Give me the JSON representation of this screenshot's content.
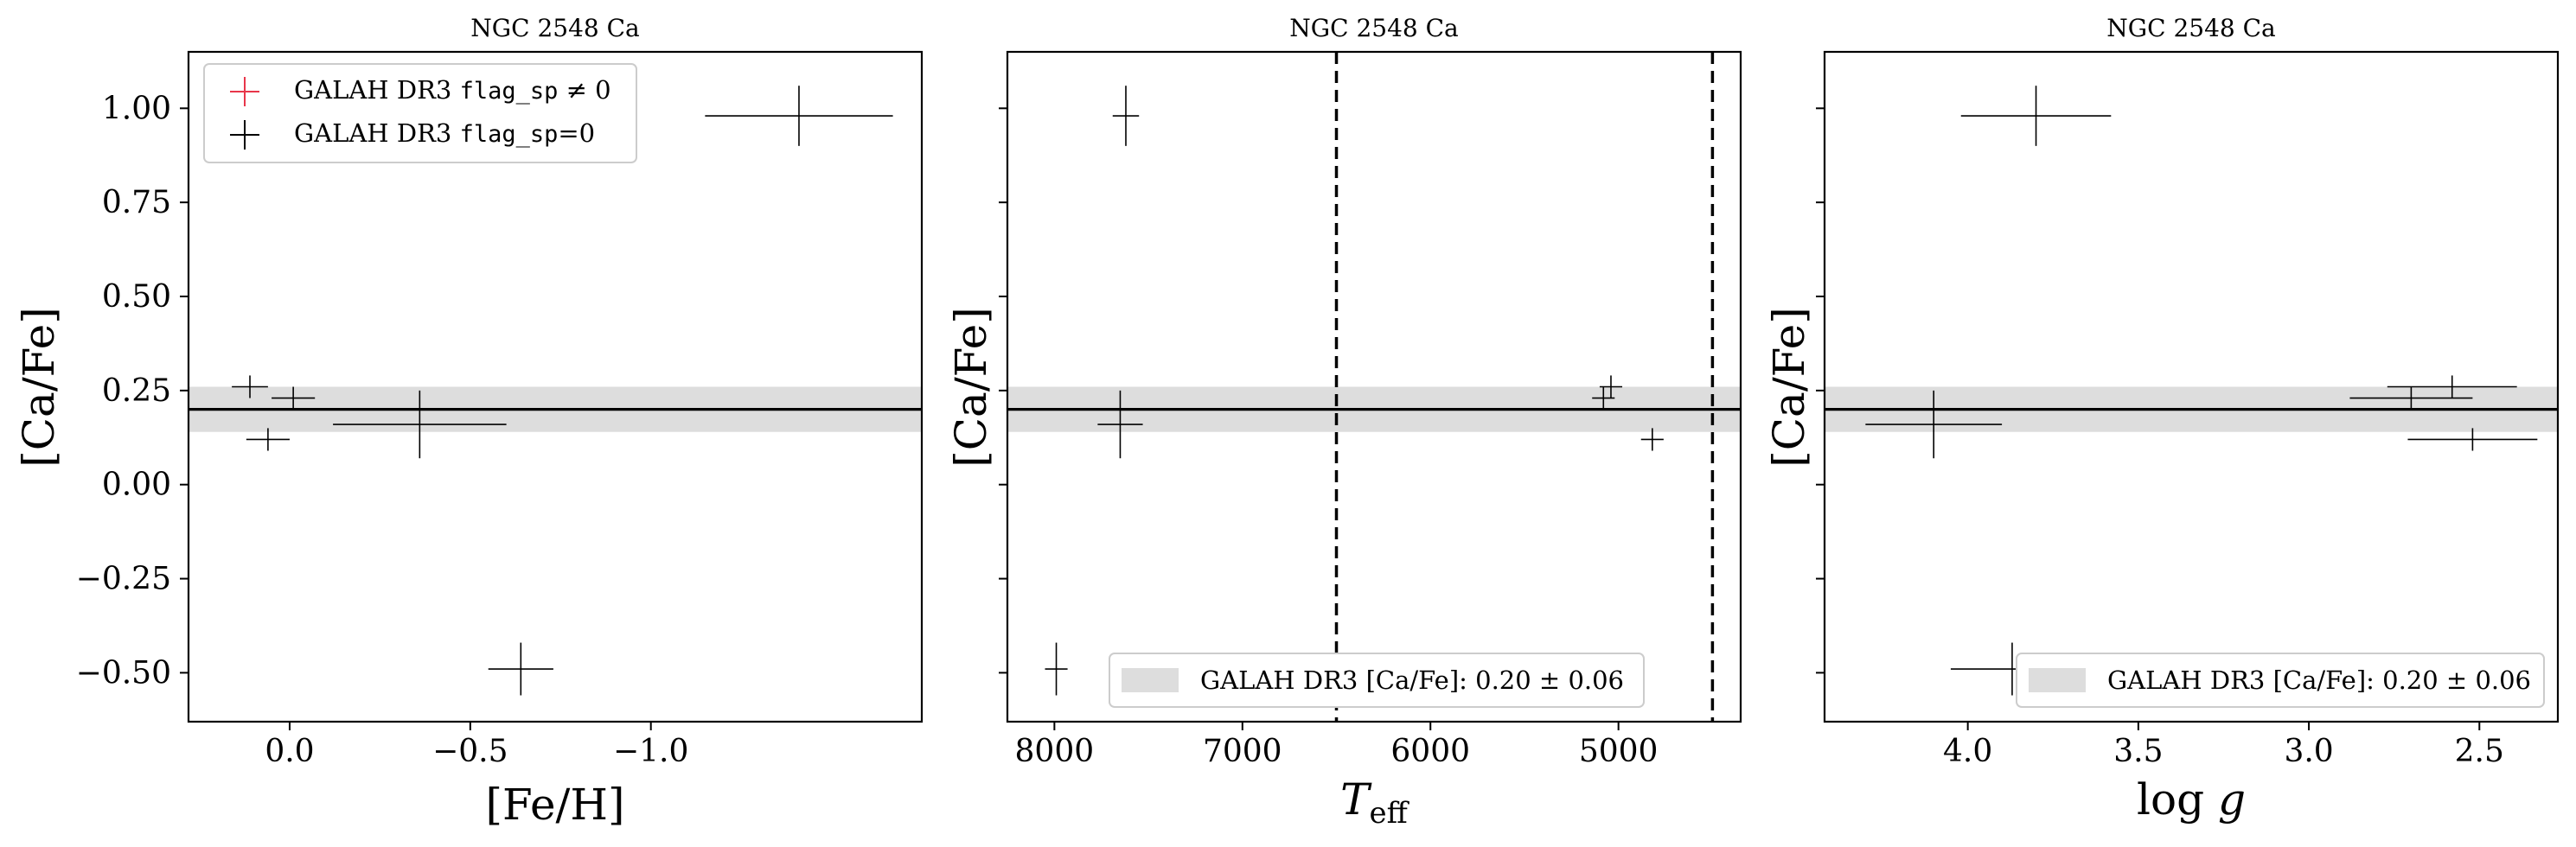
{
  "colors": {
    "band": "#dddddd",
    "flagged": "#e8364a",
    "unflagged": "#000000"
  },
  "galah": {
    "value": 0.2,
    "err": 0.06
  },
  "panels": [
    {
      "title": "NGC 2548 Ca",
      "xlabel": "[Fe/H]",
      "ylabel": "[Ca/Fe]"
    },
    {
      "title": "NGC 2548 Ca",
      "xlabel": "T_eff",
      "ylabel": "[Ca/Fe]"
    },
    {
      "title": "NGC 2548 Ca",
      "xlabel": "log g",
      "ylabel": "[Ca/Fe]"
    }
  ],
  "legend": {
    "flagged_label": "GALAH DR3 flag_sp ≠ 0",
    "unflagged_label": "GALAH DR3 flag_sp=0",
    "band_label": "GALAH DR3 [Ca/Fe]: 0.20 ± 0.06"
  },
  "chart_data": [
    {
      "type": "scatter",
      "title": "NGC 2548 Ca",
      "xlabel": "[Fe/H]",
      "ylabel": "[Ca/Fe]",
      "xlim": [
        0.28,
        -1.75
      ],
      "ylim": [
        -0.63,
        1.15
      ],
      "x_inverted": true,
      "xticks": [
        0.0,
        -0.5,
        -1.0
      ],
      "xtick_labels": [
        "0.0",
        "−0.5",
        "−1.0"
      ],
      "yticks": [
        -0.5,
        -0.25,
        0.0,
        0.25,
        0.5,
        0.75,
        1.0
      ],
      "ytick_labels": [
        "−0.50",
        "−0.25",
        "0.00",
        "0.25",
        "0.50",
        "0.75",
        "1.00"
      ],
      "legend_position": "top-left",
      "series": [
        {
          "name": "GALAH DR3 flag_sp=0",
          "points": [
            {
              "x": 0.11,
              "y": 0.26,
              "xerr": 0.05,
              "yerr": 0.03
            },
            {
              "x": 0.06,
              "y": 0.12,
              "xerr": 0.06,
              "yerr": 0.03
            },
            {
              "x": -0.01,
              "y": 0.23,
              "xerr": 0.06,
              "yerr": 0.03
            },
            {
              "x": -0.36,
              "y": 0.16,
              "xerr": 0.24,
              "yerr": 0.09
            },
            {
              "x": -0.64,
              "y": -0.49,
              "xerr": 0.09,
              "yerr": 0.07
            },
            {
              "x": -1.41,
              "y": 0.98,
              "xerr": 0.26,
              "yerr": 0.08
            }
          ]
        }
      ]
    },
    {
      "type": "scatter",
      "title": "NGC 2548 Ca",
      "xlabel": "T_eff",
      "ylabel": "[Ca/Fe]",
      "xlim": [
        8250,
        4350
      ],
      "ylim": [
        -0.63,
        1.15
      ],
      "x_inverted": true,
      "xticks": [
        8000,
        7000,
        6000,
        5000
      ],
      "xtick_labels": [
        "8000",
        "7000",
        "6000",
        "5000"
      ],
      "vertical_lines": [
        6500,
        4500
      ],
      "legend_position": "bottom-center",
      "series": [
        {
          "name": "GALAH DR3 flag_sp=0",
          "points": [
            {
              "x": 7990,
              "y": -0.49,
              "xerr": 60,
              "yerr": 0.07
            },
            {
              "x": 7620,
              "y": 0.98,
              "xerr": 70,
              "yerr": 0.08
            },
            {
              "x": 7650,
              "y": 0.16,
              "xerr": 120,
              "yerr": 0.09
            },
            {
              "x": 5080,
              "y": 0.23,
              "xerr": 60,
              "yerr": 0.03
            },
            {
              "x": 5040,
              "y": 0.26,
              "xerr": 60,
              "yerr": 0.03
            },
            {
              "x": 4820,
              "y": 0.12,
              "xerr": 60,
              "yerr": 0.03
            }
          ]
        }
      ]
    },
    {
      "type": "scatter",
      "title": "NGC 2548 Ca",
      "xlabel": "log g",
      "ylabel": "[Ca/Fe]",
      "xlim": [
        4.42,
        2.27
      ],
      "ylim": [
        -0.63,
        1.15
      ],
      "x_inverted": true,
      "xticks": [
        4.0,
        3.5,
        3.0,
        2.5
      ],
      "xtick_labels": [
        "4.0",
        "3.5",
        "3.0",
        "2.5"
      ],
      "legend_position": "bottom-right",
      "series": [
        {
          "name": "GALAH DR3 flag_sp=0",
          "points": [
            {
              "x": 4.1,
              "y": 0.16,
              "xerr": 0.2,
              "yerr": 0.09
            },
            {
              "x": 3.8,
              "y": 0.98,
              "xerr": 0.22,
              "yerr": 0.08
            },
            {
              "x": 3.87,
              "y": -0.49,
              "xerr": 0.18,
              "yerr": 0.07
            },
            {
              "x": 2.7,
              "y": 0.23,
              "xerr": 0.18,
              "yerr": 0.03
            },
            {
              "x": 2.58,
              "y": 0.26,
              "xerr": 0.19,
              "yerr": 0.03
            },
            {
              "x": 2.52,
              "y": 0.12,
              "xerr": 0.19,
              "yerr": 0.03
            }
          ]
        }
      ]
    }
  ]
}
